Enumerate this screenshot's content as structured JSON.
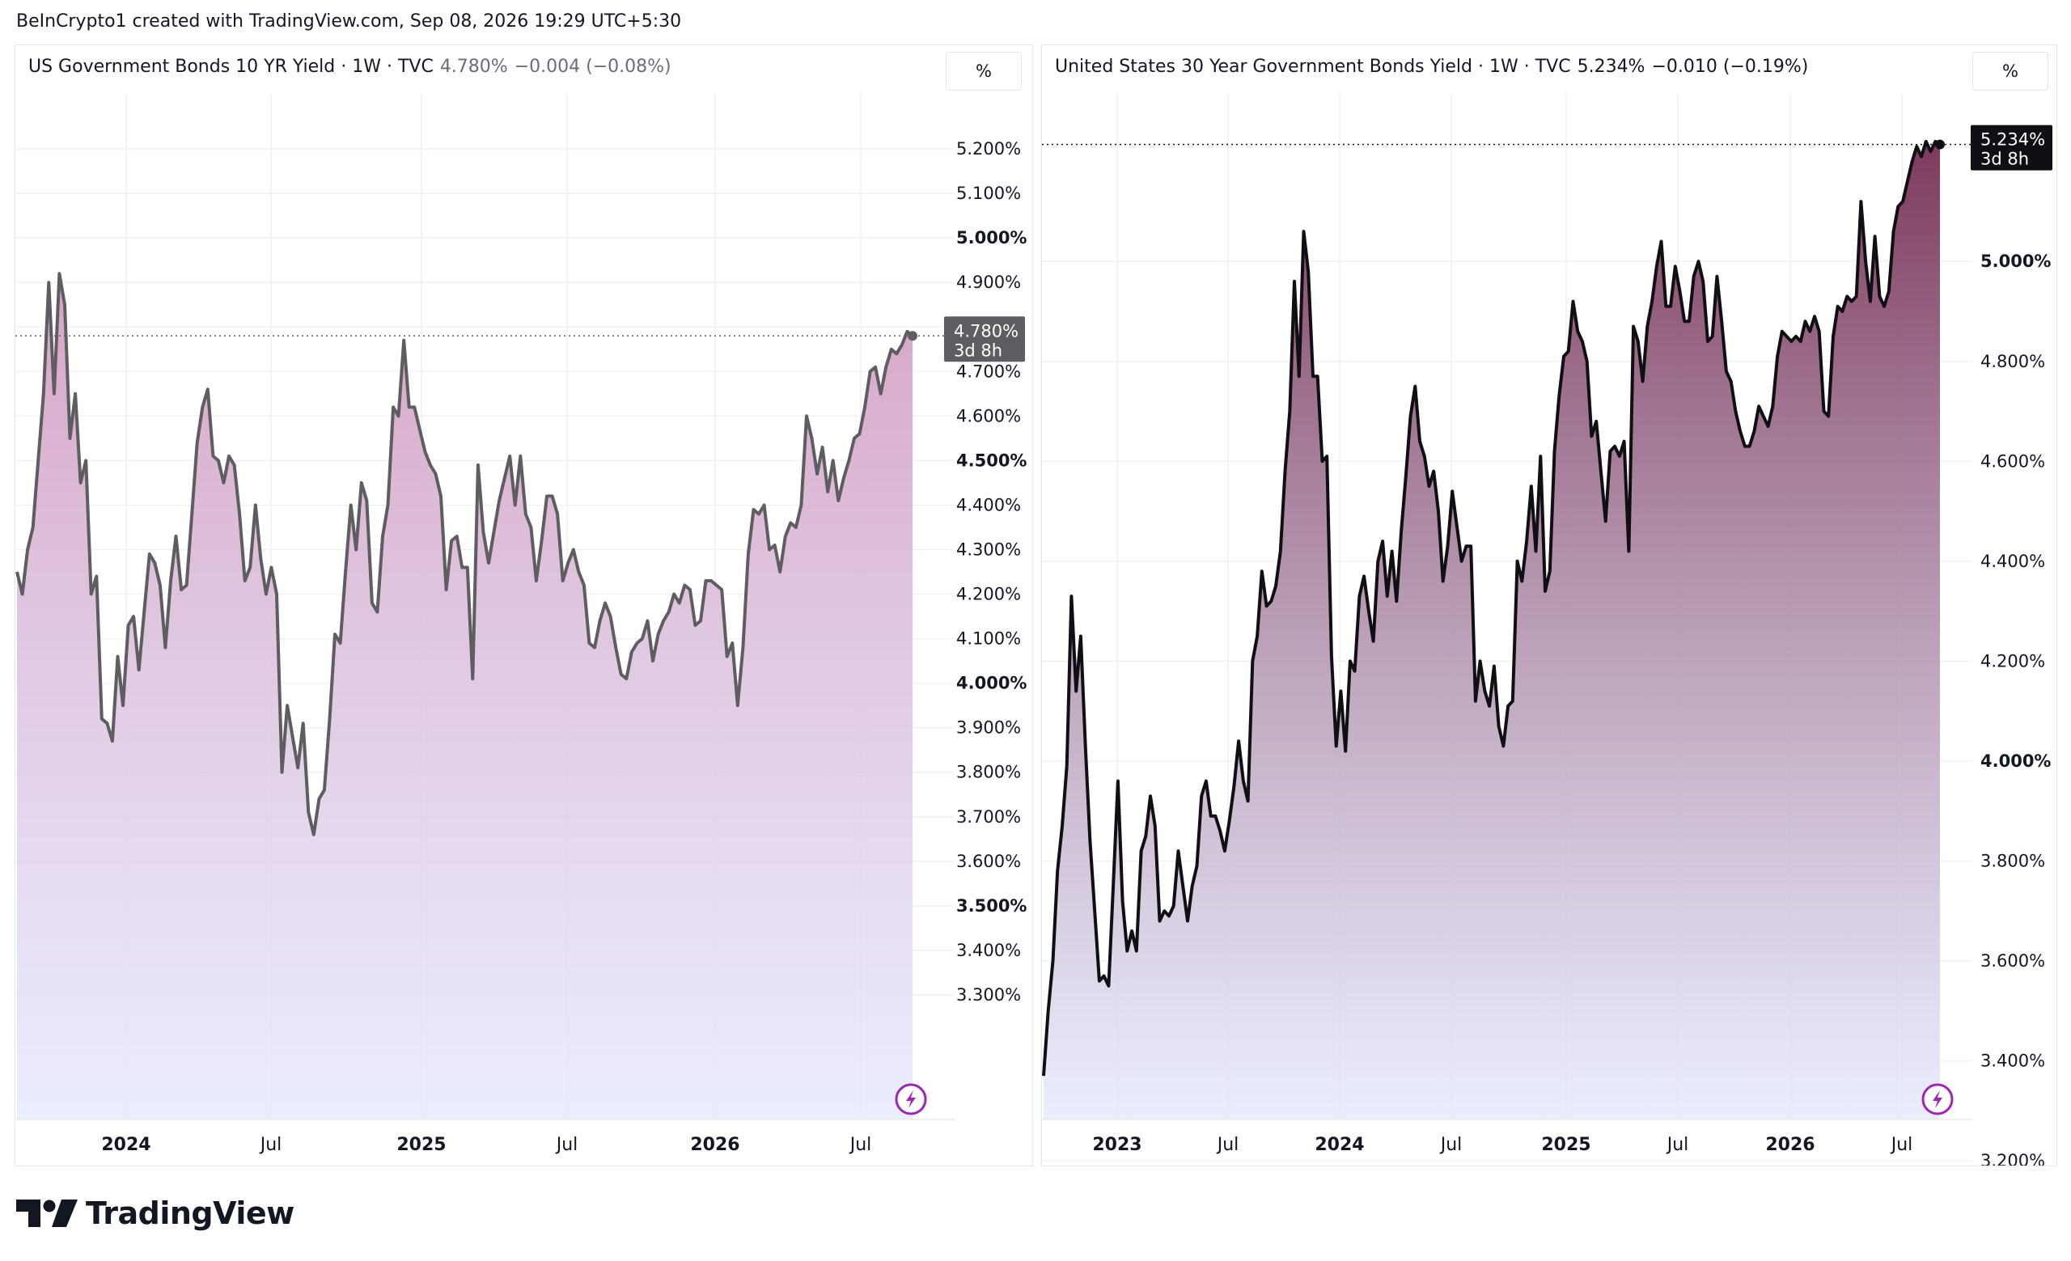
{
  "header": {
    "text": "BeInCrypto1 created with TradingView.com, Sep 08, 2026 19:29 UTC+5:30"
  },
  "brand": {
    "name": "TradingView",
    "icon": "tradingview-logo-icon"
  },
  "colors": {
    "line_left": "#5d5d62",
    "line_right": "#101014",
    "fill_left_top": "#d7a3c4",
    "fill_right_top": "#7d3a5c",
    "fill_bottom": "#e4e8fc",
    "bolt": "#9c27b0"
  },
  "chart_data": [
    {
      "type": "area",
      "legend": {
        "title": "US Government Bonds 10 YR Yield · 1W · TVC",
        "value": "4.780%",
        "change": "−0.004 (−0.08%)"
      },
      "unit_button": "%",
      "y_ticks": [
        "5.200%",
        "5.100%",
        "5.000%",
        "4.900%",
        "4.800%",
        "4.700%",
        "4.600%",
        "4.500%",
        "4.400%",
        "4.300%",
        "4.200%",
        "4.100%",
        "4.000%",
        "3.900%",
        "3.800%",
        "3.700%",
        "3.600%",
        "3.500%",
        "3.400%",
        "3.300%"
      ],
      "x_ticks": [
        "2024",
        "Jul",
        "2025",
        "Jul",
        "2026",
        "Jul"
      ],
      "ylim": [
        3.2,
        5.4
      ],
      "last": {
        "value": "4.780%",
        "countdown": "3d 8h",
        "y": 4.78
      },
      "values": [
        4.25,
        4.2,
        4.3,
        4.35,
        4.5,
        4.65,
        4.9,
        4.65,
        4.92,
        4.85,
        4.55,
        4.65,
        4.45,
        4.5,
        4.2,
        4.24,
        3.92,
        3.91,
        3.87,
        4.06,
        3.95,
        4.13,
        4.15,
        4.03,
        4.16,
        4.29,
        4.27,
        4.22,
        4.08,
        4.23,
        4.33,
        4.21,
        4.22,
        4.38,
        4.54,
        4.62,
        4.66,
        4.51,
        4.5,
        4.45,
        4.51,
        4.49,
        4.38,
        4.23,
        4.26,
        4.4,
        4.28,
        4.2,
        4.26,
        4.2,
        3.8,
        3.95,
        3.88,
        3.81,
        3.91,
        3.71,
        3.66,
        3.74,
        3.76,
        3.92,
        4.11,
        4.09,
        4.25,
        4.4,
        4.3,
        4.45,
        4.41,
        4.18,
        4.16,
        4.33,
        4.4,
        4.62,
        4.6,
        4.77,
        4.62,
        4.62,
        4.57,
        4.52,
        4.49,
        4.47,
        4.42,
        4.21,
        4.32,
        4.33,
        4.26,
        4.26,
        4.01,
        4.49,
        4.34,
        4.27,
        4.34,
        4.41,
        4.46,
        4.51,
        4.4,
        4.51,
        4.38,
        4.35,
        4.23,
        4.32,
        4.42,
        4.42,
        4.38,
        4.23,
        4.27,
        4.3,
        4.25,
        4.22,
        4.09,
        4.08,
        4.14,
        4.18,
        4.15,
        4.08,
        4.02,
        4.01,
        4.07,
        4.09,
        4.1,
        4.14,
        4.05,
        4.11,
        4.14,
        4.16,
        4.2,
        4.18,
        4.22,
        4.21,
        4.13,
        4.14,
        4.23,
        4.23,
        4.22,
        4.21,
        4.06,
        4.09,
        3.95,
        4.08,
        4.29,
        4.39,
        4.38,
        4.4,
        4.3,
        4.31,
        4.25,
        4.33,
        4.36,
        4.35,
        4.4,
        4.6,
        4.55,
        4.47,
        4.53,
        4.43,
        4.5,
        4.41,
        4.46,
        4.5,
        4.55,
        4.56,
        4.62,
        4.7,
        4.71,
        4.65,
        4.71,
        4.75,
        4.74,
        4.76,
        4.79,
        4.78
      ]
    },
    {
      "type": "area",
      "legend": {
        "title": "United States 30 Year Government Bonds Yield · 1W · TVC",
        "value": "5.234%",
        "change": "−0.010 (−0.19%)"
      },
      "unit_button": "%",
      "y_ticks": [
        "5.000%",
        "4.800%",
        "4.600%",
        "4.400%",
        "4.200%",
        "4.000%",
        "3.800%",
        "3.600%",
        "3.400%",
        "3.200%"
      ],
      "x_ticks": [
        "2023",
        "Jul",
        "2024",
        "Jul",
        "2025",
        "Jul",
        "2026",
        "Jul"
      ],
      "ylim": [
        3.15,
        5.35
      ],
      "last": {
        "value": "5.234%",
        "countdown": "3d 8h",
        "y": 5.234
      },
      "values": [
        3.37,
        3.5,
        3.6,
        3.78,
        3.87,
        3.99,
        4.33,
        4.14,
        4.25,
        4.03,
        3.84,
        3.7,
        3.56,
        3.57,
        3.55,
        3.75,
        3.96,
        3.72,
        3.62,
        3.66,
        3.62,
        3.82,
        3.85,
        3.93,
        3.87,
        3.68,
        3.7,
        3.69,
        3.71,
        3.82,
        3.75,
        3.68,
        3.75,
        3.79,
        3.93,
        3.96,
        3.89,
        3.89,
        3.86,
        3.82,
        3.88,
        3.95,
        4.04,
        3.96,
        3.92,
        4.2,
        4.25,
        4.38,
        4.31,
        4.32,
        4.35,
        4.42,
        4.58,
        4.7,
        4.96,
        4.77,
        5.06,
        4.98,
        4.77,
        4.77,
        4.6,
        4.61,
        4.21,
        4.03,
        4.14,
        4.02,
        4.2,
        4.18,
        4.33,
        4.37,
        4.3,
        4.24,
        4.4,
        4.44,
        4.33,
        4.42,
        4.32,
        4.46,
        4.57,
        4.69,
        4.75,
        4.64,
        4.61,
        4.55,
        4.58,
        4.5,
        4.36,
        4.43,
        4.54,
        4.47,
        4.4,
        4.43,
        4.43,
        4.12,
        4.2,
        4.14,
        4.11,
        4.19,
        4.07,
        4.03,
        4.11,
        4.12,
        4.4,
        4.36,
        4.44,
        4.55,
        4.42,
        4.61,
        4.34,
        4.38,
        4.62,
        4.73,
        4.81,
        4.82,
        4.92,
        4.86,
        4.84,
        4.8,
        4.65,
        4.68,
        4.58,
        4.48,
        4.62,
        4.63,
        4.61,
        4.64,
        4.42,
        4.87,
        4.84,
        4.76,
        4.87,
        4.92,
        4.99,
        5.04,
        4.91,
        4.91,
        4.99,
        4.94,
        4.88,
        4.88,
        4.97,
        5.0,
        4.96,
        4.84,
        4.85,
        4.97,
        4.88,
        4.78,
        4.76,
        4.7,
        4.66,
        4.63,
        4.63,
        4.66,
        4.71,
        4.69,
        4.67,
        4.71,
        4.81,
        4.86,
        4.85,
        4.84,
        4.85,
        4.84,
        4.88,
        4.86,
        4.89,
        4.86,
        4.7,
        4.69,
        4.85,
        4.91,
        4.9,
        4.93,
        4.92,
        4.93,
        5.12,
        5.0,
        4.92,
        5.05,
        4.93,
        4.91,
        4.94,
        5.06,
        5.11,
        5.12,
        5.16,
        5.2,
        5.23,
        5.21,
        5.24,
        5.22,
        5.24,
        5.234
      ]
    }
  ]
}
